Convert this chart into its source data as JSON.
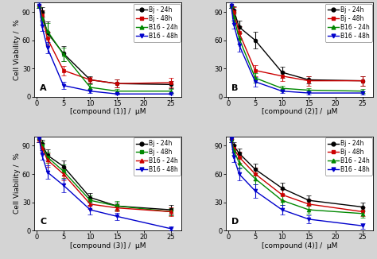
{
  "x_values": [
    0.5,
    1,
    2,
    5,
    10,
    15,
    25
  ],
  "panels": [
    {
      "label": "A",
      "xlabel": "[compound (1)] /  μM",
      "legend_order": [
        "Bj - 24h",
        "Bj - 48h",
        "B16 - 24h",
        "B16 - 48h"
      ],
      "series": {
        "Bj - 24h": {
          "color": "#000000",
          "marker": "o",
          "y": [
            97,
            90,
            68,
            46,
            18,
            14,
            13
          ],
          "yerr": [
            3,
            5,
            12,
            8,
            4,
            4,
            4
          ]
        },
        "Bj - 48h": {
          "color": "#cc0000",
          "marker": "s",
          "y": [
            97,
            87,
            62,
            28,
            18,
            14,
            15
          ],
          "yerr": [
            3,
            5,
            7,
            5,
            3,
            4,
            5
          ]
        },
        "B16 - 24h": {
          "color": "#008800",
          "marker": "^",
          "y": [
            97,
            83,
            70,
            45,
            10,
            6,
            6
          ],
          "yerr": [
            3,
            6,
            8,
            7,
            3,
            2,
            2
          ]
        },
        "B16 - 48h": {
          "color": "#0000cc",
          "marker": "v",
          "y": [
            97,
            75,
            52,
            12,
            6,
            3,
            3
          ],
          "yerr": [
            3,
            5,
            6,
            4,
            2,
            1,
            1
          ]
        }
      }
    },
    {
      "label": "B",
      "xlabel": "[compound (2)] /  μM",
      "legend_order": [
        "Bj - 24h",
        "Bj - 48h",
        "B16 - 24h",
        "B16 - 48h"
      ],
      "series": {
        "Bj - 24h": {
          "color": "#000000",
          "marker": "o",
          "y": [
            97,
            92,
            74,
            60,
            26,
            18,
            17
          ],
          "yerr": [
            3,
            4,
            7,
            9,
            6,
            4,
            5
          ]
        },
        "Bj - 48h": {
          "color": "#cc0000",
          "marker": "s",
          "y": [
            97,
            90,
            68,
            28,
            22,
            17,
            17
          ],
          "yerr": [
            3,
            5,
            7,
            6,
            5,
            5,
            5
          ]
        },
        "B16 - 24h": {
          "color": "#008800",
          "marker": "^",
          "y": [
            97,
            85,
            62,
            20,
            9,
            7,
            6
          ],
          "yerr": [
            3,
            5,
            6,
            5,
            3,
            2,
            2
          ]
        },
        "B16 - 48h": {
          "color": "#0000cc",
          "marker": "v",
          "y": [
            97,
            77,
            55,
            16,
            6,
            4,
            4
          ],
          "yerr": [
            3,
            5,
            7,
            5,
            2,
            2,
            2
          ]
        }
      }
    },
    {
      "label": "C",
      "xlabel": "[compound (3)] /  μM",
      "legend_order": [
        "Bj - 24h",
        "Bj - 48h",
        "B16 - 24h",
        "B16 - 48h"
      ],
      "series": {
        "Bj - 24h": {
          "color": "#000000",
          "marker": "o",
          "y": [
            97,
            92,
            80,
            68,
            35,
            26,
            22
          ],
          "yerr": [
            3,
            4,
            6,
            6,
            5,
            4,
            5
          ]
        },
        "Bj - 48h": {
          "color": "#008800",
          "marker": "s",
          "y": [
            97,
            90,
            78,
            63,
            32,
            26,
            20
          ],
          "yerr": [
            3,
            5,
            6,
            7,
            5,
            5,
            4
          ]
        },
        "B16 - 24h": {
          "color": "#cc0000",
          "marker": "^",
          "y": [
            97,
            88,
            75,
            60,
            28,
            24,
            20
          ],
          "yerr": [
            3,
            5,
            7,
            7,
            5,
            4,
            5
          ]
        },
        "B16 - 48h": {
          "color": "#0000cc",
          "marker": "v",
          "y": [
            97,
            80,
            62,
            48,
            22,
            15,
            2
          ],
          "yerr": [
            3,
            5,
            7,
            7,
            5,
            4,
            2
          ]
        }
      }
    },
    {
      "label": "D",
      "xlabel": "[compound (4)] /  μM",
      "legend_order": [
        "Bj - 24h",
        "Bj - 48h",
        "B16 - 24h",
        "B16 - 48h"
      ],
      "series": {
        "Bj - 24h": {
          "color": "#000000",
          "marker": "o",
          "y": [
            97,
            90,
            82,
            65,
            45,
            32,
            25
          ],
          "yerr": [
            3,
            4,
            5,
            6,
            6,
            5,
            5
          ]
        },
        "Bj - 48h": {
          "color": "#cc0000",
          "marker": "s",
          "y": [
            97,
            87,
            78,
            60,
            38,
            28,
            20
          ],
          "yerr": [
            3,
            4,
            6,
            7,
            6,
            5,
            5
          ]
        },
        "B16 - 24h": {
          "color": "#008800",
          "marker": "^",
          "y": [
            97,
            85,
            72,
            55,
            32,
            22,
            18
          ],
          "yerr": [
            3,
            5,
            6,
            6,
            5,
            4,
            4
          ]
        },
        "B16 - 48h": {
          "color": "#0000cc",
          "marker": "v",
          "y": [
            97,
            78,
            60,
            42,
            22,
            12,
            5
          ],
          "yerr": [
            3,
            5,
            7,
            7,
            5,
            4,
            3
          ]
        }
      }
    }
  ],
  "ylabel": "Cell Viability /  %",
  "ylim": [
    0,
    100
  ],
  "xlim": [
    -0.5,
    27
  ],
  "xticks": [
    0,
    5,
    10,
    15,
    20,
    25
  ],
  "yticks": [
    0,
    30,
    60,
    90
  ],
  "bg_color": "#d4d4d4",
  "plot_bg_color": "#ffffff",
  "linewidth": 1.0,
  "markersize": 3.5,
  "capsize": 2,
  "elinewidth": 0.8,
  "fontsize_label": 6.5,
  "fontsize_tick": 6,
  "fontsize_legend": 5.5,
  "fontsize_panel_label": 8
}
